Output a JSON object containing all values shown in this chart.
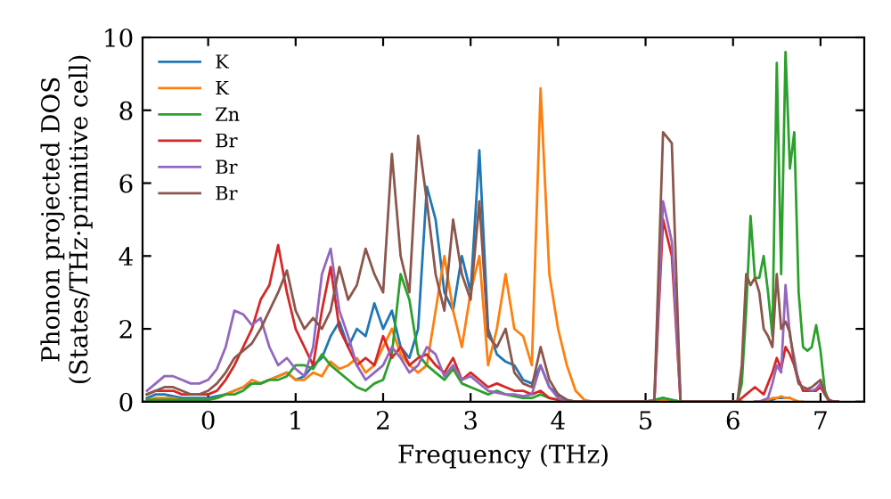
{
  "chart_data": {
    "type": "line",
    "xlabel": "Frequency (THz)",
    "ylabel": "Phonon projected DOS\n(States/THz·primitive cell)",
    "x": [
      -0.7,
      -0.6,
      -0.5,
      -0.4,
      -0.3,
      -0.2,
      -0.1,
      0,
      0.1,
      0.2,
      0.3,
      0.4,
      0.5,
      0.6,
      0.7,
      0.8,
      0.9,
      1.0,
      1.1,
      1.2,
      1.3,
      1.4,
      1.5,
      1.6,
      1.7,
      1.8,
      1.9,
      2.0,
      2.1,
      2.2,
      2.3,
      2.4,
      2.5,
      2.6,
      2.7,
      2.8,
      2.9,
      3.0,
      3.1,
      3.2,
      3.3,
      3.4,
      3.5,
      3.6,
      3.7,
      3.8,
      3.9,
      4.0,
      4.1,
      4.2,
      4.3,
      4.4,
      4.5,
      4.6,
      4.7,
      4.8,
      4.9,
      5.0,
      5.1,
      5.2,
      5.3,
      5.4,
      5.5,
      5.6,
      5.7,
      5.8,
      5.9,
      6.0,
      6.05,
      6.1,
      6.15,
      6.2,
      6.25,
      6.3,
      6.35,
      6.4,
      6.45,
      6.5,
      6.55,
      6.6,
      6.65,
      6.7,
      6.75,
      6.8,
      6.85,
      6.9,
      6.95,
      7.0,
      7.05,
      7.1,
      7.15,
      7.2
    ],
    "series": [
      {
        "name": "K",
        "color": "#1f77b4",
        "values": [
          0.1,
          0.2,
          0.2,
          0.15,
          0.1,
          0.1,
          0.1,
          0.1,
          0.15,
          0.2,
          0.3,
          0.4,
          0.5,
          0.5,
          0.6,
          0.7,
          0.8,
          0.6,
          0.7,
          1.0,
          1.2,
          1.8,
          2.2,
          1.5,
          2.0,
          1.8,
          2.7,
          2.0,
          2.5,
          1.5,
          1.2,
          2.0,
          5.9,
          5.0,
          3.0,
          2.5,
          4.0,
          3.0,
          6.9,
          2.0,
          1.3,
          1.1,
          1.0,
          0.6,
          0.5,
          1.0,
          0.4,
          0.2,
          0.05,
          0,
          0,
          0,
          0,
          0,
          0,
          0,
          0,
          0,
          0.05,
          0.1,
          0.05,
          0,
          0,
          0,
          0,
          0,
          0,
          0,
          0,
          0,
          null,
          null,
          0,
          0,
          0,
          0.05,
          0.05,
          0.1,
          0.1,
          0.1,
          0.1,
          null,
          null,
          null,
          null,
          null,
          null,
          null,
          null,
          null,
          null,
          null
        ]
      },
      {
        "name": "K",
        "color": "#ff7f0e",
        "values": [
          0.05,
          0.1,
          0.1,
          0.1,
          0.05,
          0.05,
          0.05,
          0.05,
          0.1,
          0.2,
          0.3,
          0.4,
          0.6,
          0.5,
          0.6,
          0.7,
          0.8,
          0.6,
          0.6,
          0.8,
          0.7,
          1.1,
          0.9,
          1.0,
          1.2,
          0.8,
          1.0,
          1.5,
          2.0,
          1.3,
          1.0,
          0.8,
          1.0,
          2.5,
          4.0,
          2.5,
          1.5,
          3.0,
          4.0,
          1.0,
          2.0,
          3.5,
          2.0,
          1.8,
          1.0,
          8.6,
          3.5,
          2.0,
          1.0,
          0.3,
          0.05,
          0,
          0,
          0,
          0,
          0,
          0,
          0,
          0,
          0.05,
          0,
          0,
          0,
          0,
          0,
          0,
          0,
          0,
          0,
          0,
          null,
          null,
          0,
          0,
          0,
          0.05,
          0.1,
          0.1,
          0.15,
          0.1,
          0.1,
          0.05,
          0,
          0,
          null,
          null,
          null,
          null,
          null,
          null,
          null,
          null
        ]
      },
      {
        "name": "Zn",
        "color": "#2ca02c",
        "values": [
          0.05,
          0.05,
          0.05,
          0.05,
          0.05,
          0.05,
          0.05,
          0.05,
          0.1,
          0.2,
          0.2,
          0.3,
          0.5,
          0.5,
          0.6,
          0.6,
          0.7,
          1.0,
          1.0,
          0.9,
          1.3,
          1.0,
          0.8,
          0.6,
          0.4,
          0.3,
          0.5,
          0.6,
          1.3,
          3.5,
          2.8,
          1.3,
          1.0,
          0.8,
          0.6,
          0.9,
          0.5,
          0.4,
          0.3,
          0.2,
          0.3,
          0.2,
          0.15,
          0.1,
          0.1,
          0.2,
          0.1,
          0.05,
          0,
          0,
          0,
          0,
          0,
          0,
          0,
          0,
          0,
          0,
          0.05,
          0.1,
          0.05,
          0,
          0,
          0,
          0,
          0,
          0,
          0,
          0,
          0.5,
          2.5,
          5.1,
          3.4,
          3.4,
          4.0,
          3.0,
          1.8,
          9.3,
          3.5,
          9.6,
          6.4,
          7.4,
          3.0,
          1.5,
          1.4,
          1.5,
          2.1,
          1.4,
          0.3,
          0,
          0,
          0
        ]
      },
      {
        "name": "Br",
        "color": "#d62728",
        "values": [
          0.2,
          0.3,
          0.3,
          0.3,
          0.2,
          0.2,
          0.2,
          0.2,
          0.3,
          0.6,
          1.0,
          1.5,
          2.0,
          2.8,
          3.2,
          4.3,
          3.0,
          2.0,
          1.5,
          1.0,
          2.5,
          3.7,
          2.0,
          1.5,
          1.0,
          1.2,
          1.0,
          1.8,
          1.2,
          1.5,
          1.0,
          1.2,
          1.3,
          1.0,
          0.8,
          1.2,
          0.6,
          0.8,
          0.6,
          0.4,
          0.5,
          0.4,
          0.3,
          0.3,
          0.2,
          0.3,
          0.1,
          0.05,
          0,
          0,
          0,
          0,
          0,
          0,
          0,
          0,
          0,
          0,
          0,
          5.0,
          4.0,
          0,
          0,
          0,
          0,
          0,
          0,
          0,
          0,
          0.1,
          0.2,
          0.3,
          0.4,
          0.3,
          0.2,
          0.5,
          0.8,
          1.2,
          0.9,
          1.5,
          1.3,
          1.0,
          0.6,
          0.3,
          0.3,
          0.3,
          0.3,
          0.4,
          0.2,
          0.05,
          0,
          0
        ]
      },
      {
        "name": "Br",
        "color": "#9467bd",
        "values": [
          0.3,
          0.5,
          0.7,
          0.7,
          0.6,
          0.5,
          0.5,
          0.6,
          0.9,
          1.5,
          2.5,
          2.4,
          2.1,
          2.3,
          1.5,
          1.0,
          1.2,
          0.9,
          0.7,
          1.5,
          3.5,
          4.2,
          2.5,
          1.8,
          1.0,
          0.6,
          0.8,
          1.0,
          1.5,
          1.2,
          0.8,
          1.0,
          1.5,
          1.3,
          0.7,
          1.0,
          0.6,
          0.7,
          0.5,
          0.3,
          0.25,
          0.2,
          0.2,
          0.15,
          0.2,
          1.0,
          0.4,
          0.1,
          0,
          0,
          0,
          0,
          0,
          0,
          0,
          0,
          0,
          0,
          0,
          5.5,
          4.4,
          0,
          0,
          0,
          0,
          0,
          0,
          0,
          0,
          null,
          null,
          null,
          0,
          0,
          0.05,
          0.1,
          0.5,
          1.0,
          0.8,
          3.2,
          1.8,
          1.2,
          0.5,
          0.4,
          0.35,
          0.3,
          0.35,
          0.5,
          0.2,
          0,
          0,
          0
        ]
      },
      {
        "name": "Br",
        "color": "#8c564b",
        "values": [
          0.2,
          0.3,
          0.4,
          0.4,
          0.3,
          0.2,
          0.2,
          0.3,
          0.5,
          0.8,
          1.2,
          1.4,
          1.6,
          2.0,
          2.5,
          3.0,
          3.6,
          2.5,
          2.0,
          2.3,
          2.0,
          2.5,
          3.7,
          2.8,
          3.2,
          4.2,
          3.5,
          3.0,
          6.8,
          4.0,
          3.0,
          7.3,
          5.5,
          3.5,
          2.5,
          5.0,
          3.5,
          2.8,
          5.5,
          1.8,
          1.5,
          2.0,
          0.8,
          0.5,
          0.4,
          1.5,
          0.6,
          0.2,
          0.05,
          0,
          0,
          0,
          0,
          0,
          0,
          0,
          0,
          0,
          0,
          7.4,
          7.1,
          0,
          0,
          0,
          0,
          0,
          0,
          0,
          0,
          1.0,
          3.5,
          3.2,
          3.4,
          3.0,
          2.0,
          1.8,
          1.5,
          3.5,
          2.0,
          2.2,
          1.9,
          1.0,
          0.5,
          0.4,
          0.35,
          0.4,
          0.5,
          0.6,
          0.2,
          0,
          0,
          0
        ]
      }
    ],
    "xlim": [
      -0.75,
      7.5
    ],
    "ylim": [
      0,
      10
    ],
    "xticks": [
      0,
      1,
      2,
      3,
      4,
      5,
      6,
      7
    ],
    "yticks": [
      0,
      2,
      4,
      6,
      8,
      10
    ],
    "legend": "top left",
    "grid": false
  }
}
